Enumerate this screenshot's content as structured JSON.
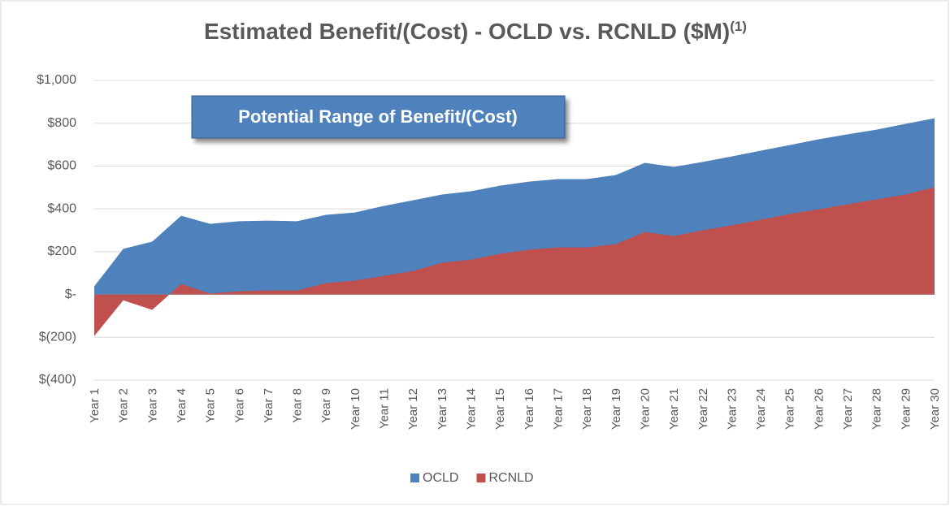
{
  "chart_data": {
    "type": "area",
    "title": "Estimated Benefit/(Cost) - OCLD vs. RCNLD ($M)",
    "title_superscript": "(1)",
    "annotation": "Potential Range of Benefit/(Cost)",
    "categories": [
      "Year 1",
      "Year 2",
      "Year 3",
      "Year 4",
      "Year 5",
      "Year 6",
      "Year 7",
      "Year 8",
      "Year 9",
      "Year 10",
      "Year 11",
      "Year 12",
      "Year 13",
      "Year 14",
      "Year 15",
      "Year 16",
      "Year 17",
      "Year 18",
      "Year 19",
      "Year 20",
      "Year 21",
      "Year 22",
      "Year 23",
      "Year 24",
      "Year 25",
      "Year 26",
      "Year 27",
      "Year 28",
      "Year 29",
      "Year 30"
    ],
    "series": [
      {
        "name": "OCLD",
        "color": "#4f81bd",
        "values": [
          38,
          213,
          247,
          368,
          330,
          342,
          345,
          342,
          372,
          383,
          414,
          440,
          467,
          482,
          508,
          527,
          539,
          539,
          558,
          615,
          596,
          619,
          645,
          672,
          698,
          725,
          748,
          770,
          797,
          823
        ]
      },
      {
        "name": "RCNLD",
        "color": "#c0504d",
        "values": [
          -194,
          -27,
          -72,
          49,
          4,
          15,
          19,
          19,
          53,
          65,
          87,
          110,
          148,
          163,
          190,
          209,
          220,
          220,
          235,
          292,
          273,
          300,
          323,
          349,
          376,
          398,
          421,
          444,
          467,
          501
        ]
      }
    ],
    "ylim": [
      -400,
      1000
    ],
    "yticks": [
      {
        "value": -400,
        "label": "$(400)"
      },
      {
        "value": -200,
        "label": "$(200)"
      },
      {
        "value": 0,
        "label": "$-"
      },
      {
        "value": 200,
        "label": "$200"
      },
      {
        "value": 400,
        "label": "$400"
      },
      {
        "value": 600,
        "label": "$600"
      },
      {
        "value": 800,
        "label": "$800"
      },
      {
        "value": 1000,
        "label": "$1,000"
      }
    ],
    "grid": true,
    "legend": "bottom"
  }
}
